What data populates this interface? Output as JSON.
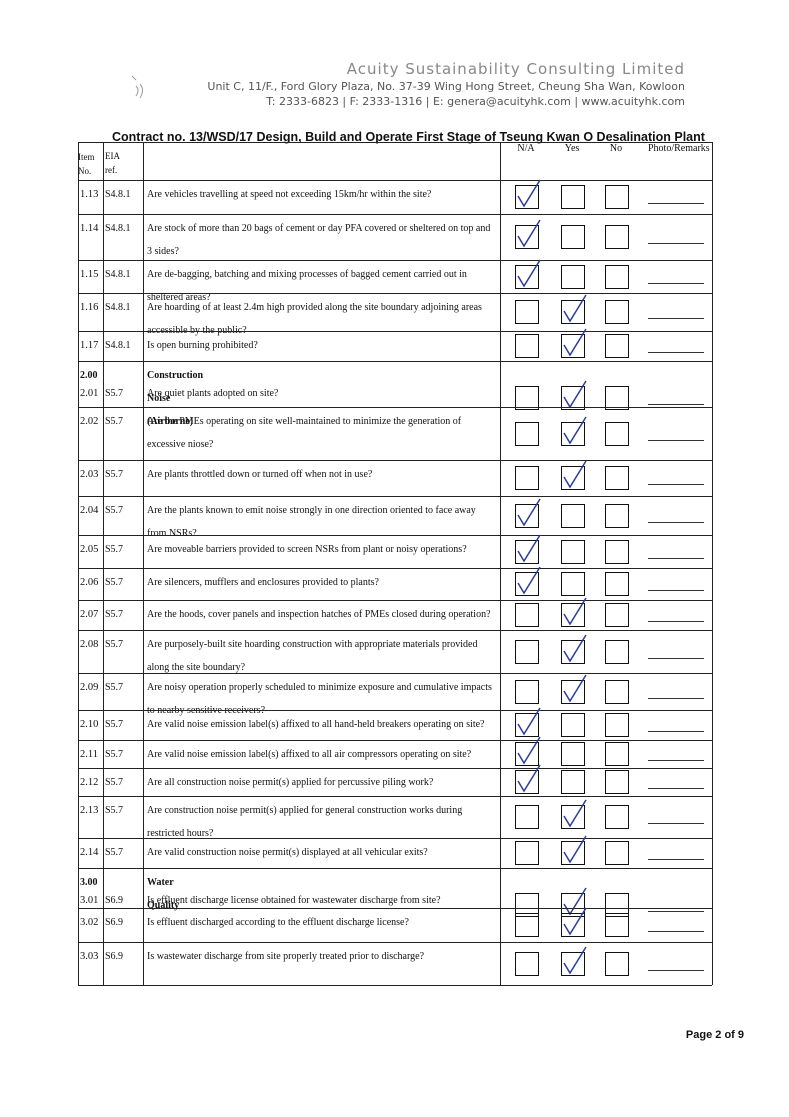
{
  "header": {
    "company": "Acuity Sustainability Consulting Limited",
    "address": "Unit C, 11/F., Ford Glory Plaza, No. 37-39 Wing Hong Street, Cheung Sha Wan, Kowloon",
    "contact": "T: 2333-6823 | F: 2333-1316 | E: genera@acuityhk.com | www.acuityhk.com"
  },
  "title": "Contract no. 13/WSD/17 Design, Build and Operate First Stage of Tseung Kwan O Desalination Plant",
  "table": {
    "columns": {
      "item": "Item No.",
      "ref": "EIA ref.",
      "options": [
        "N/A",
        "Yes",
        "No"
      ],
      "remarks": "Photo/Remarks"
    },
    "rows": [
      {
        "item": "1.13",
        "ref": "S4.8.1",
        "question": "Are vehicles travelling at speed not exceeding 15km/hr within the site?",
        "checked": "N/A"
      },
      {
        "item": "1.14",
        "ref": "S4.8.1",
        "question": "Are stock of more than 20 bags of cement or day PFA covered or sheltered on top and 3 sides?",
        "checked": "N/A"
      },
      {
        "item": "1.15",
        "ref": "S4.8.1",
        "question": "Are de-bagging, batching and mixing processes of bagged cement carried out in sheltered areas?",
        "checked": "N/A"
      },
      {
        "item": "1.16",
        "ref": "S4.8.1",
        "question": "Are hoarding of at least 2.4m high provided along the site boundary adjoining areas accessible by the public?",
        "checked": "Yes"
      },
      {
        "item": "1.17",
        "ref": "S4.8.1",
        "question": "Is open burning prohibited?",
        "checked": "Yes"
      },
      {
        "section_item": "2.00",
        "section": "Construction Noise (Airborne)",
        "item": "2.01",
        "ref": "S5.7",
        "question": "Are quiet plants adopted on site?",
        "checked": "Yes"
      },
      {
        "item": "2.02",
        "ref": "S5.7",
        "question": "Are the PMEs operating on site well-maintained to minimize the generation of excessive niose?",
        "checked": "Yes"
      },
      {
        "item": "2.03",
        "ref": "S5.7",
        "question": "Are plants throttled down or turned off when not in use?",
        "checked": "Yes"
      },
      {
        "item": "2.04",
        "ref": "S5.7",
        "question": "Are the plants known to emit noise strongly in one direction oriented to face away from NSRs?",
        "checked": "N/A"
      },
      {
        "item": "2.05",
        "ref": "S5.7",
        "question": "Are moveable barriers provided to screen NSRs from plant or noisy operations?",
        "checked": "N/A"
      },
      {
        "item": "2.06",
        "ref": "S5.7",
        "question": "Are silencers, mufflers and enclosures provided to plants?",
        "checked": "N/A"
      },
      {
        "item": "2.07",
        "ref": "S5.7",
        "question": "Are the hoods, cover panels and inspection hatches of PMEs closed during operation?",
        "checked": "Yes"
      },
      {
        "item": "2.08",
        "ref": "S5.7",
        "question": "Are purposely-built site hoarding construction with appropriate materials provided along the site boundary?",
        "checked": "Yes"
      },
      {
        "item": "2.09",
        "ref": "S5.7",
        "question": "Are noisy operation properly scheduled to minimize exposure and cumulative impacts to nearby sensitive receivers?",
        "checked": "Yes"
      },
      {
        "item": "2.10",
        "ref": "S5.7",
        "question": "Are valid noise emission label(s) affixed to all hand-held breakers operating on site?",
        "checked": "N/A"
      },
      {
        "item": "2.11",
        "ref": "S5.7",
        "question": "Are valid noise emission label(s) affixed to all air compressors operating on site?",
        "checked": "N/A"
      },
      {
        "item": "2.12",
        "ref": "S5.7",
        "question": "Are all construction noise permit(s) applied for percussive piling work?",
        "checked": "N/A"
      },
      {
        "item": "2.13",
        "ref": "S5.7",
        "question": "Are construction noise permit(s) applied for general construction works during restricted hours?",
        "checked": "Yes"
      },
      {
        "item": "2.14",
        "ref": "S5.7",
        "question": "Are valid construction noise permit(s) displayed at all vehicular exits?",
        "checked": "Yes"
      },
      {
        "section_item": "3.00",
        "section": "Water Quality",
        "item": "3.01",
        "ref": "S6.9",
        "question": "Is effluent discharge license obtained for wastewater discharge from site?",
        "checked": "Yes"
      },
      {
        "item": "3.02",
        "ref": "S6.9",
        "question": "Is effluent discharged according to the effluent discharge license?",
        "checked": "Yes"
      },
      {
        "item": "3.03",
        "ref": "S6.9",
        "question": "Is wastewater discharge from site properly treated prior to discharge?",
        "checked": "Yes"
      }
    ]
  },
  "footer": "Page 2 of 9"
}
